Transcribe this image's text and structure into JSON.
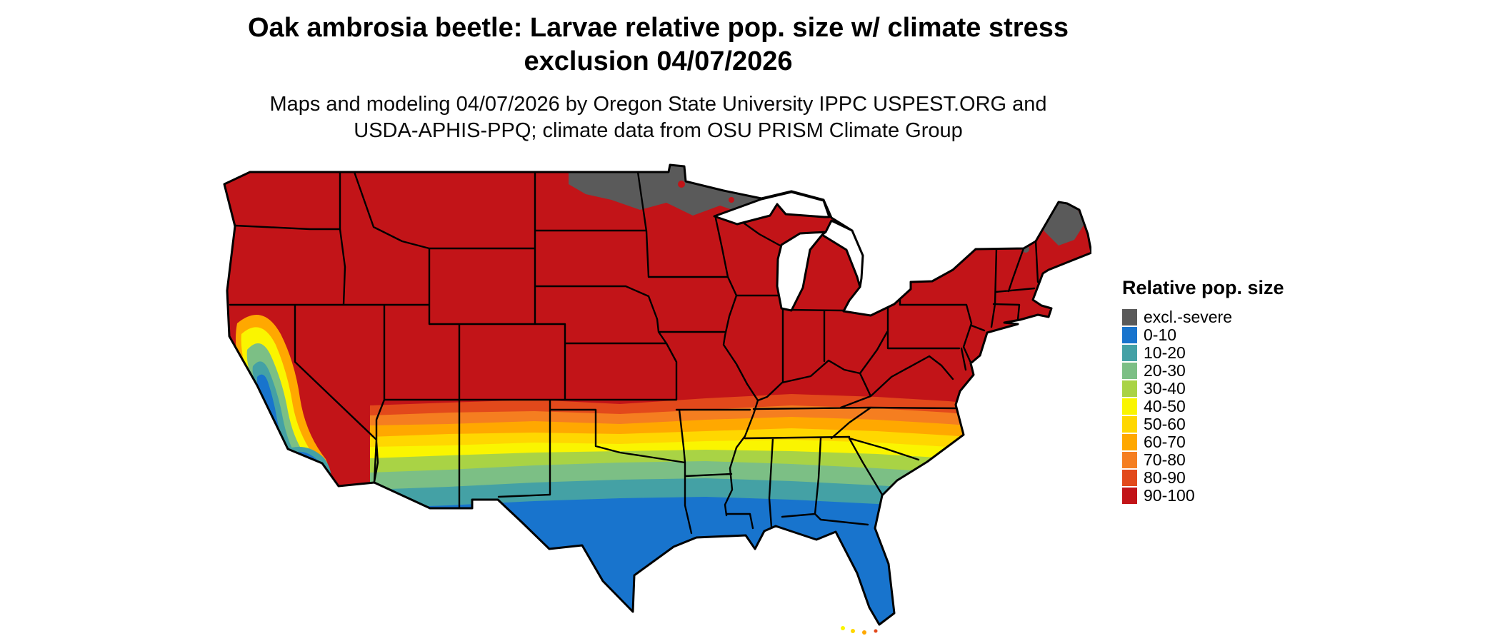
{
  "title": {
    "line1": "Oak ambrosia beetle: Larvae relative pop. size w/ climate stress",
    "line2": "exclusion 04/07/2026"
  },
  "subtitle": {
    "line1": "Maps and modeling 04/07/2026 by Oregon State University IPPC USPEST.ORG and",
    "line2": "USDA-APHIS-PPQ; climate data from OSU PRISM Climate Group"
  },
  "legend": {
    "title": "Relative pop. size",
    "items": [
      {
        "key": "excl.-severe",
        "label": "excl.-severe",
        "color": "#5A5A5A"
      },
      {
        "key": "0-10",
        "label": "0-10",
        "color": "#1874CD"
      },
      {
        "key": "10-20",
        "label": "10-20",
        "color": "#44A1A5"
      },
      {
        "key": "20-30",
        "label": "20-30",
        "color": "#7CBF85"
      },
      {
        "key": "30-40",
        "label": "30-40",
        "color": "#A9D345"
      },
      {
        "key": "40-50",
        "label": "40-50",
        "color": "#FAF500"
      },
      {
        "key": "50-60",
        "label": "50-60",
        "color": "#FFD700"
      },
      {
        "key": "60-70",
        "label": "60-70",
        "color": "#FFA800"
      },
      {
        "key": "70-80",
        "label": "70-80",
        "color": "#F57E20"
      },
      {
        "key": "80-90",
        "label": "80-90",
        "color": "#E2491B"
      },
      {
        "key": "90-100",
        "label": "90-100",
        "color": "#C21418"
      }
    ]
  },
  "map": {
    "region_label": "Continental United States"
  }
}
